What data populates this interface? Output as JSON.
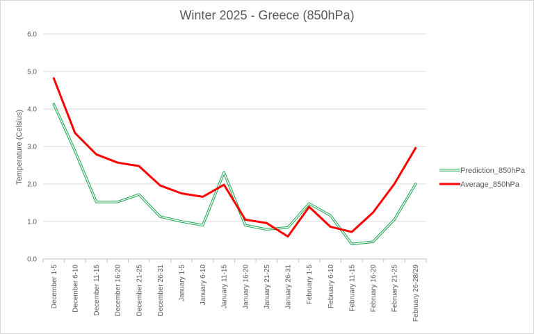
{
  "chart_data": {
    "type": "line",
    "title": "Winter 2025 - Greece (850hPa)",
    "xlabel": "",
    "ylabel": "Temperature (Celsius)",
    "ylim": [
      0,
      6
    ],
    "ytick_labels": [
      "0.0",
      "1.0",
      "2.0",
      "3.0",
      "4.0",
      "5.0",
      "6.0"
    ],
    "grid": true,
    "legend_position": "right",
    "categories": [
      "December 1-5",
      "December 6-10",
      "December 11-15",
      "December 16-20",
      "December 21-25",
      "December 26-31",
      "January 1-5",
      "January 6-10",
      "January 11-15",
      "January 16-20",
      "January 21-25",
      "January 26-31",
      "February 1-5",
      "February 6-10",
      "February 11-15",
      "February 16-20",
      "February 21-25",
      "February 26-28/29"
    ],
    "series": [
      {
        "name": "Prediction_850hPa",
        "color": "#21a854",
        "style": "double-line",
        "values": [
          4.13,
          2.88,
          1.52,
          1.52,
          1.72,
          1.13,
          1.0,
          0.9,
          2.31,
          0.9,
          0.79,
          0.84,
          1.48,
          1.16,
          0.4,
          0.46,
          1.05,
          2.0
        ]
      },
      {
        "name": "Average_850hPa",
        "color": "#ff0000",
        "style": "thick-line",
        "values": [
          4.82,
          3.36,
          2.79,
          2.57,
          2.48,
          1.96,
          1.75,
          1.66,
          1.98,
          1.05,
          0.96,
          0.6,
          1.39,
          0.86,
          0.72,
          1.24,
          2.0,
          2.96
        ]
      }
    ]
  }
}
